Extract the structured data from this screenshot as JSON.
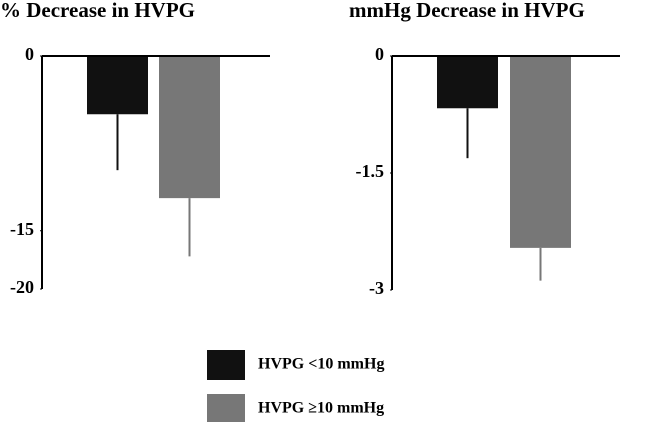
{
  "chart_data": [
    {
      "type": "bar",
      "title": "% Decrease in HVPG",
      "series": [
        {
          "name": "HVPG <10 mmHg",
          "color": "#111111",
          "values": [
            -5.0
          ],
          "errors": [
            4.8
          ]
        },
        {
          "name": "HVPG ≥10 mmHg",
          "color": "#777777",
          "values": [
            -12.2
          ],
          "errors": [
            5.0
          ]
        }
      ],
      "ylim": [
        -20,
        0
      ],
      "yticks": [
        0,
        -15,
        -20
      ]
    },
    {
      "type": "bar",
      "title": "mmHg Decrease in HVPG",
      "series": [
        {
          "color": "#111111",
          "values": [
            -0.67
          ],
          "errors": [
            0.64
          ]
        },
        {
          "color": "#777777",
          "values": [
            -2.46
          ],
          "errors": [
            0.42
          ]
        }
      ],
      "ylim": [
        -3,
        0
      ],
      "yticks": [
        0,
        -1.5,
        -3
      ]
    }
  ]
}
